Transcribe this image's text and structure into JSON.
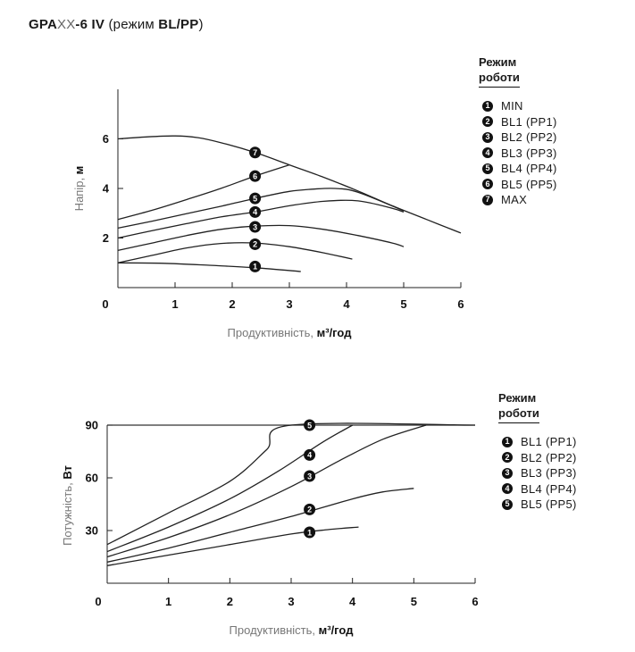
{
  "title": {
    "model_prefix": "GPA",
    "model_mid": "XX",
    "model_suffix": "-6 IV",
    "mode_open": " (режим ",
    "mode_value": "BL/PP",
    "mode_close": ")"
  },
  "chart_data": [
    {
      "type": "line",
      "title": "",
      "xlabel": "Продуктивність,",
      "xunit": "м³/год",
      "ylabel": "Напір,",
      "yunit": "м",
      "xlim": [
        0,
        6
      ],
      "ylim": [
        0,
        8
      ],
      "xticks": [
        "0",
        "1",
        "2",
        "3",
        "4",
        "5",
        "6"
      ],
      "yticks": [
        "2",
        "4",
        "6"
      ],
      "legend_title_line1": "Режим",
      "legend_title_line2": "роботи",
      "series": [
        {
          "name": "MIN",
          "marker": "1",
          "label_at": [
            2.4,
            0.85
          ],
          "x": [
            0,
            0.8,
            1.6,
            2.4,
            3.2
          ],
          "y": [
            1.0,
            0.98,
            0.9,
            0.8,
            0.65
          ]
        },
        {
          "name": "BL1 (PP1)",
          "marker": "2",
          "label_at": [
            2.4,
            1.75
          ],
          "x": [
            0,
            0.6,
            1.2,
            1.8,
            2.4,
            3.0,
            3.6,
            4.1
          ],
          "y": [
            1.0,
            1.3,
            1.6,
            1.78,
            1.8,
            1.65,
            1.4,
            1.15
          ]
        },
        {
          "name": "BL2 (PP2)",
          "marker": "3",
          "label_at": [
            2.4,
            2.45
          ],
          "x": [
            0,
            0.6,
            1.2,
            1.8,
            2.4,
            3.0,
            3.6,
            4.2,
            4.8,
            5.0
          ],
          "y": [
            1.5,
            1.8,
            2.1,
            2.35,
            2.48,
            2.5,
            2.35,
            2.1,
            1.8,
            1.65
          ]
        },
        {
          "name": "BL3 (PP3)",
          "marker": "4",
          "label_at": [
            2.4,
            3.05
          ],
          "x": [
            0,
            0.6,
            1.2,
            1.8,
            2.4,
            3.0,
            3.6,
            4.2,
            4.8,
            5.0
          ],
          "y": [
            2.0,
            2.3,
            2.58,
            2.85,
            3.05,
            3.3,
            3.48,
            3.5,
            3.2,
            3.05
          ]
        },
        {
          "name": "BL4 (PP4)",
          "marker": "5",
          "label_at": [
            2.4,
            3.6
          ],
          "x": [
            0,
            0.6,
            1.2,
            1.8,
            2.4,
            3.0,
            3.4,
            3.8,
            4.2,
            5.0
          ],
          "y": [
            2.4,
            2.68,
            2.98,
            3.28,
            3.6,
            3.88,
            3.97,
            4.0,
            3.85,
            3.1
          ]
        },
        {
          "name": "BL5 (PP5)",
          "marker": "6",
          "label_at": [
            2.4,
            4.5
          ],
          "x": [
            0,
            0.6,
            1.2,
            1.8,
            2.4,
            3.0
          ],
          "y": [
            2.75,
            3.12,
            3.55,
            4.0,
            4.5,
            4.95
          ]
        },
        {
          "name": "MAX",
          "marker": "7",
          "label_at": [
            2.4,
            5.45
          ],
          "x": [
            0,
            0.5,
            1.0,
            1.4,
            1.8,
            2.4,
            3.0,
            3.6,
            4.2,
            4.8,
            5.4,
            6.0
          ],
          "y": [
            6.0,
            6.08,
            6.12,
            6.05,
            5.85,
            5.45,
            4.95,
            4.45,
            3.9,
            3.3,
            2.75,
            2.2
          ]
        }
      ]
    },
    {
      "type": "line",
      "title": "",
      "xlabel": "Продуктивність,",
      "xunit": "м³/год",
      "ylabel": "Потужність,",
      "yunit": "Вт",
      "xlim": [
        0,
        6
      ],
      "ylim": [
        0,
        90
      ],
      "xticks": [
        "0",
        "1",
        "2",
        "3",
        "4",
        "5",
        "6"
      ],
      "yticks": [
        "30",
        "60",
        "90"
      ],
      "legend_title_line1": "Режим",
      "legend_title_line2": "роботи",
      "series": [
        {
          "name": "BL1 (PP1)",
          "marker": "1",
          "label_at": [
            3.3,
            29
          ],
          "x": [
            0,
            1.0,
            2.0,
            3.0,
            3.6,
            4.1
          ],
          "y": [
            10,
            16,
            22,
            28,
            30.5,
            32
          ]
        },
        {
          "name": "BL2 (PP2)",
          "marker": "2",
          "label_at": [
            3.3,
            42
          ],
          "x": [
            0,
            1.0,
            2.0,
            3.0,
            4.0,
            4.5,
            5.0
          ],
          "y": [
            12,
            20,
            29,
            38,
            48,
            52,
            54
          ]
        },
        {
          "name": "BL3 (PP3)",
          "marker": "3",
          "label_at": [
            3.3,
            61
          ],
          "x": [
            0,
            1.0,
            2.0,
            3.0,
            3.8,
            4.5,
            5.2
          ],
          "y": [
            15,
            26,
            39,
            55,
            70,
            82,
            90
          ]
        },
        {
          "name": "BL4 (PP4)",
          "marker": "4",
          "label_at": [
            3.3,
            73
          ],
          "x": [
            0,
            1.0,
            2.0,
            2.8,
            3.5,
            4.0
          ],
          "y": [
            18,
            32,
            48,
            64,
            80,
            90
          ]
        },
        {
          "name": "BL5 (PP5)",
          "marker": "5",
          "label_at": [
            3.3,
            90
          ],
          "x": [
            0,
            1.0,
            2.0,
            2.6,
            3.0,
            6.0
          ],
          "y": [
            22,
            40,
            58,
            76,
            90,
            90
          ]
        }
      ]
    }
  ]
}
